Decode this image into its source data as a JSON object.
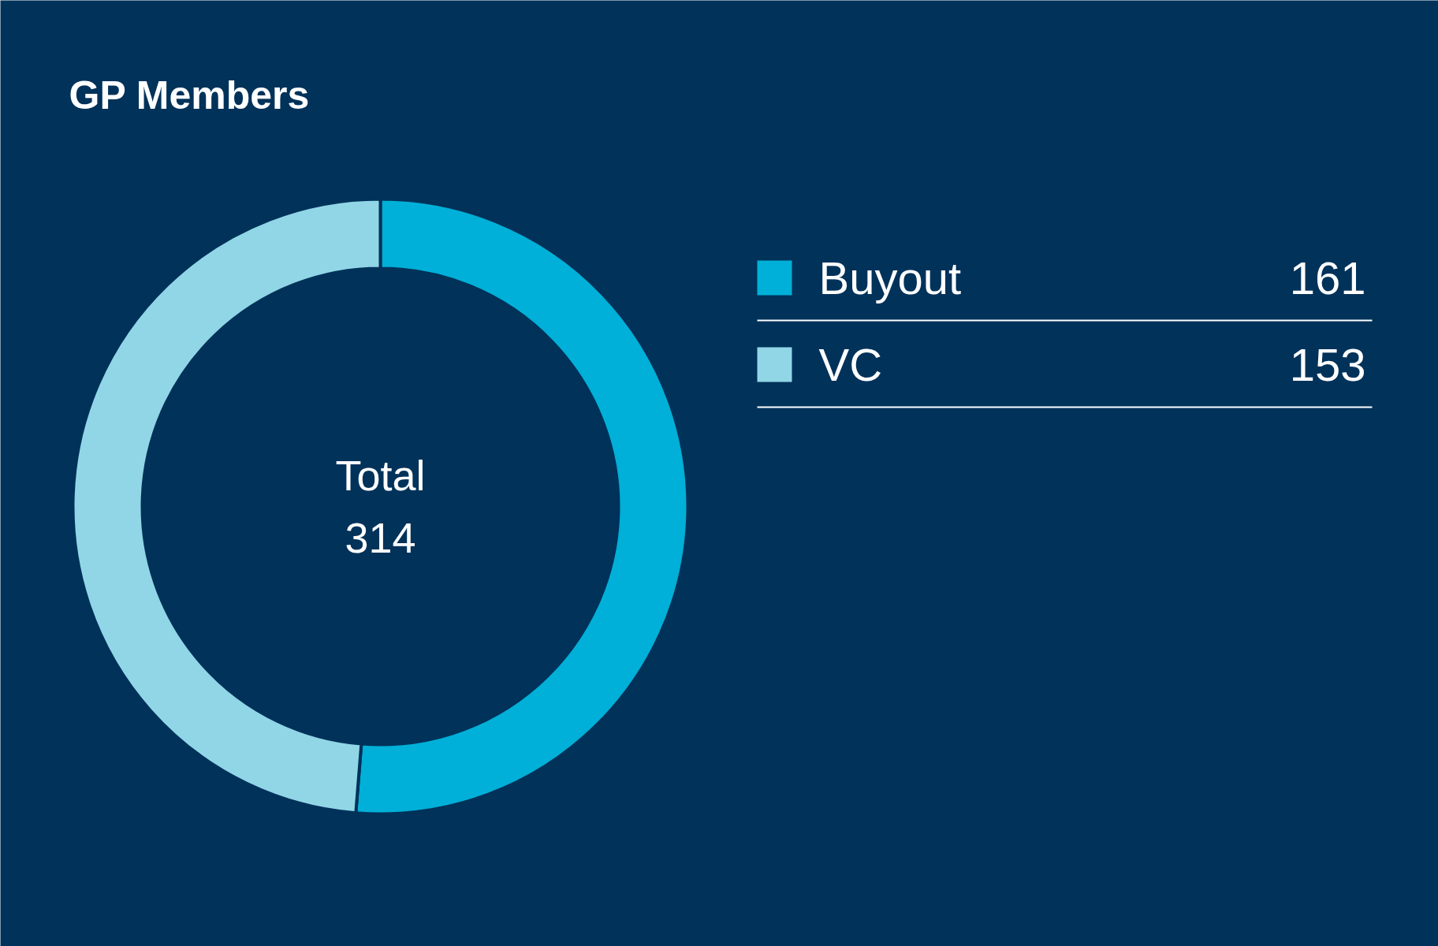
{
  "chart_data": {
    "type": "donut",
    "title": "GP Members",
    "categories": [
      "Buyout",
      "VC"
    ],
    "values": [
      161,
      153
    ],
    "colors": [
      "#00b0d8",
      "#91d6e6"
    ],
    "annotations": [
      "Total",
      "314"
    ],
    "legend": "right",
    "data_labels": true
  }
}
